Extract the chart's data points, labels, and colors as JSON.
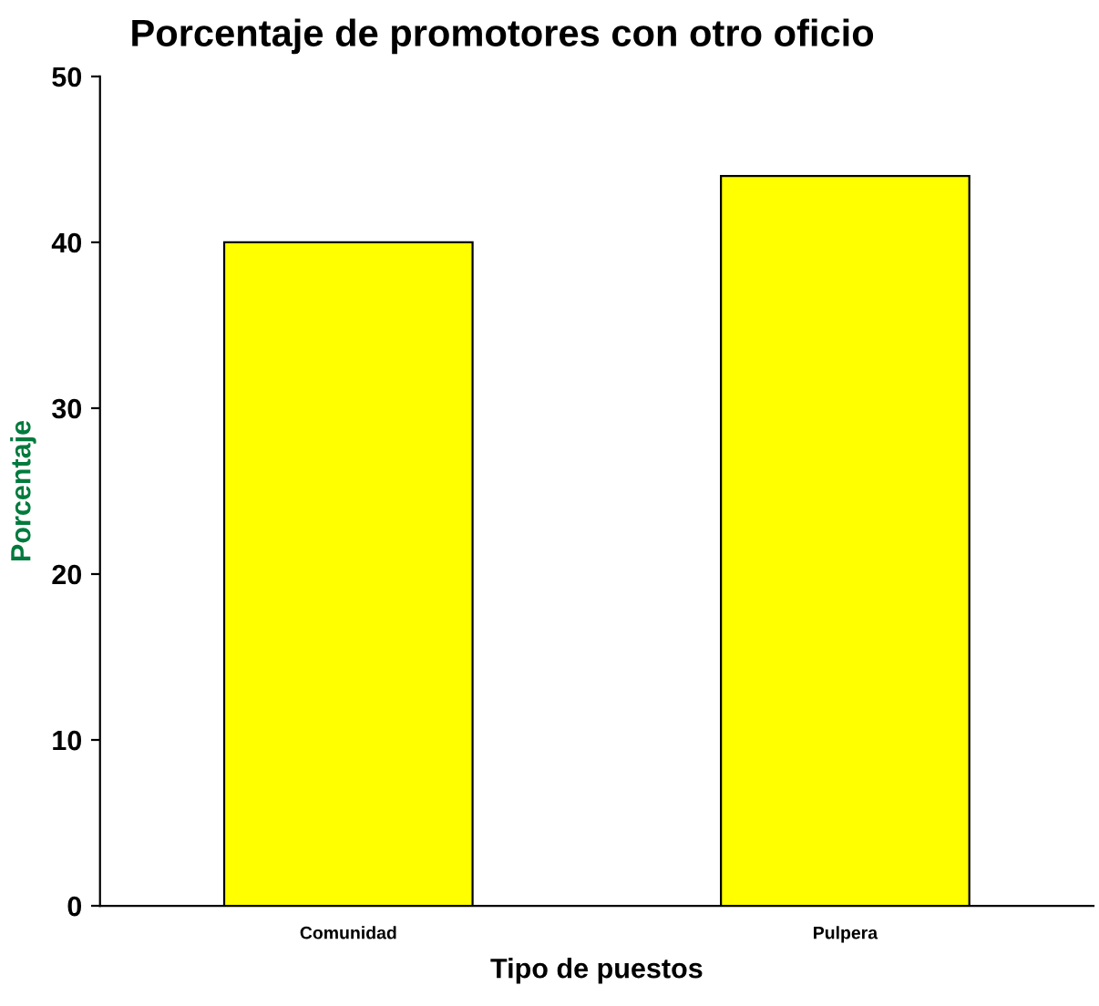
{
  "chart_data": {
    "type": "bar",
    "title": "Porcentaje de promotores con otro oficio",
    "xlabel": "Tipo de puestos",
    "ylabel": "Porcentaje",
    "categories": [
      "Comunidad",
      "Pulpera"
    ],
    "series": [
      {
        "color": "#ffff00",
        "values": [
          40,
          44
        ]
      }
    ],
    "ylim": [
      0,
      50
    ],
    "yticks": [
      0,
      10,
      20,
      30,
      40,
      50
    ],
    "grid": false
  }
}
